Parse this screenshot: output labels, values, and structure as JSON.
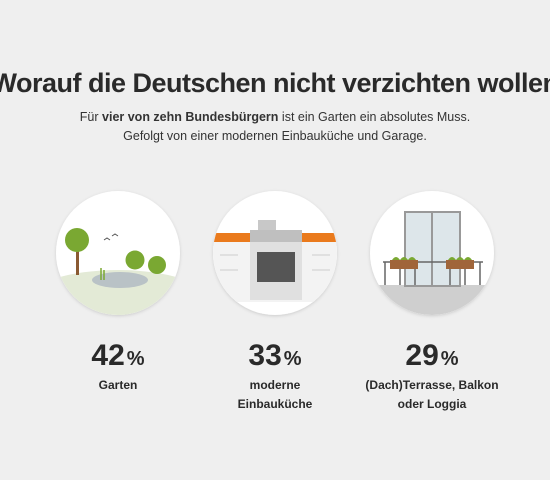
{
  "header": {
    "title": "Worauf die Deutschen nicht verzichten wollen",
    "subtitle_line1": [
      "Für",
      "vier von zehn Bundesbürgern",
      "ist ein Garten ein absolutes Muss."
    ],
    "subtitle_line2": "Gefolgt von einer modernen Einbauküche und Garage."
  },
  "items": [
    {
      "value": 42,
      "unit": "%",
      "label": [
        "Garten"
      ]
    },
    {
      "value": 33,
      "unit": "%",
      "label": [
        "moderne",
        "Einbauküche"
      ]
    },
    {
      "value": 29,
      "unit": "%",
      "label": [
        "(Dach)Terrasse, Balkon",
        "oder Loggia"
      ]
    }
  ]
}
